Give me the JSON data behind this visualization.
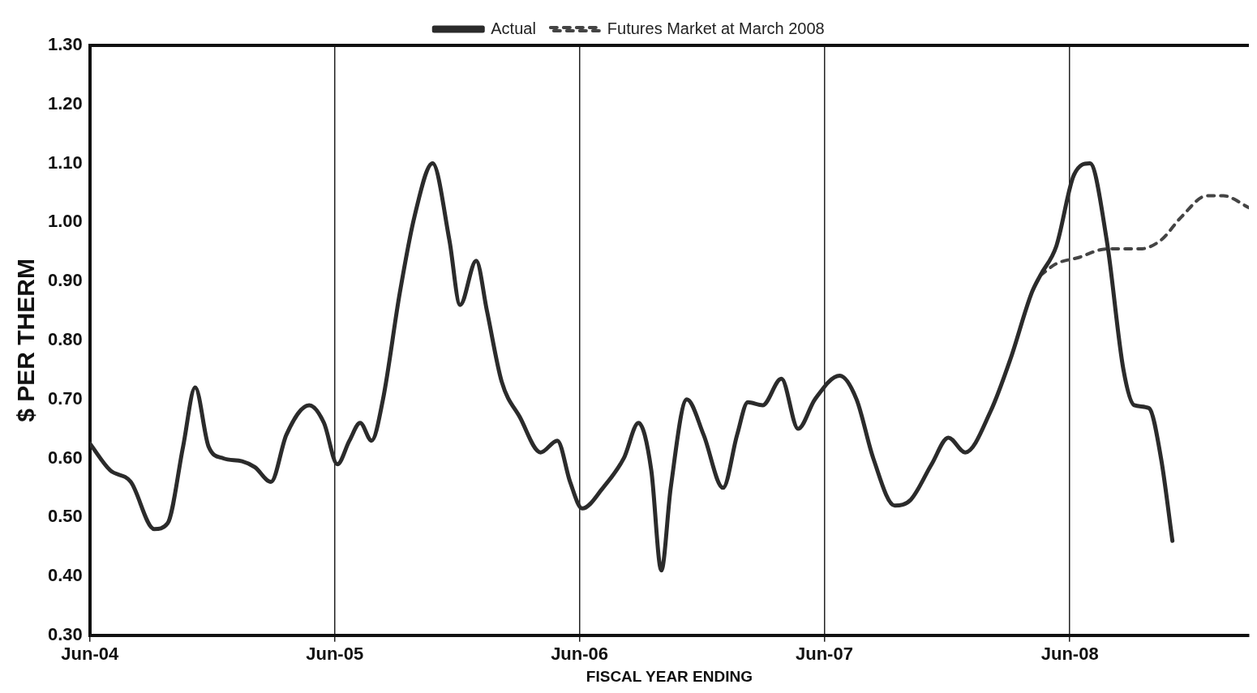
{
  "chart_data": {
    "type": "line",
    "xlabel": "FISCAL YEAR ENDING",
    "ylabel": "$ PER THERM",
    "legend": "top",
    "grid": "x",
    "marker": "none",
    "xlim": [
      "2004-06-01",
      "2009-02-23"
    ],
    "xticks": [
      {
        "value": "2004-06-01",
        "label": "Jun-04"
      },
      {
        "value": "2005-06-01",
        "label": "Jun-05"
      },
      {
        "value": "2006-06-01",
        "label": "Jun-06"
      },
      {
        "value": "2007-06-01",
        "label": "Jun-07"
      },
      {
        "value": "2008-06-01",
        "label": "Jun-08"
      }
    ],
    "ylim": [
      0.3,
      1.3
    ],
    "yticks": [
      {
        "value": 0.3,
        "label": "0.30"
      },
      {
        "value": 0.4,
        "label": "0.40"
      },
      {
        "value": 0.5,
        "label": "0.50"
      },
      {
        "value": 0.6,
        "label": "0.60"
      },
      {
        "value": 0.7,
        "label": "0.70"
      },
      {
        "value": 0.8,
        "label": "0.80"
      },
      {
        "value": 0.9,
        "label": "0.90"
      },
      {
        "value": 1.0,
        "label": "1.00"
      },
      {
        "value": 1.1,
        "label": "1.10"
      },
      {
        "value": 1.2,
        "label": "1.20"
      },
      {
        "value": 1.3,
        "label": "1.30"
      }
    ],
    "series": [
      {
        "name": "Actual",
        "color": "#2b2b2b",
        "line_style": "solid",
        "x": [
          "2004-06-01",
          "2004-07-01",
          "2004-08-01",
          "2004-09-05",
          "2004-09-25",
          "2004-10-18",
          "2004-11-05",
          "2004-11-25",
          "2004-12-17",
          "2005-01-14",
          "2005-02-02",
          "2005-02-26",
          "2005-03-21",
          "2005-04-24",
          "2005-05-16",
          "2005-06-05",
          "2005-06-23",
          "2005-07-09",
          "2005-07-26",
          "2005-08-12",
          "2005-09-06",
          "2005-09-28",
          "2005-10-25",
          "2005-11-19",
          "2005-12-05",
          "2005-12-29",
          "2006-01-14",
          "2006-02-05",
          "2006-03-04",
          "2006-04-04",
          "2006-04-29",
          "2006-05-18",
          "2006-06-05",
          "2006-07-06",
          "2006-08-06",
          "2006-08-28",
          "2006-09-16",
          "2006-10-01",
          "2006-10-15",
          "2006-11-08",
          "2006-12-03",
          "2007-01-01",
          "2007-01-22",
          "2007-02-07",
          "2007-03-01",
          "2007-03-29",
          "2007-04-23",
          "2007-05-18",
          "2007-06-24",
          "2007-07-19",
          "2007-08-13",
          "2007-09-14",
          "2007-10-08",
          "2007-11-08",
          "2007-12-03",
          "2007-12-28",
          "2008-02-04",
          "2008-03-05",
          "2008-04-05",
          "2008-04-18",
          "2008-05-12",
          "2008-06-07",
          "2008-07-01",
          "2008-07-26",
          "2008-08-20",
          "2008-09-05",
          "2008-09-27",
          "2008-10-15",
          "2008-11-01"
        ],
        "values": [
          0.625,
          0.58,
          0.56,
          0.48,
          0.49,
          0.62,
          0.72,
          0.62,
          0.6,
          0.595,
          0.585,
          0.56,
          0.64,
          0.69,
          0.66,
          0.59,
          0.63,
          0.66,
          0.63,
          0.7,
          0.88,
          1.01,
          1.1,
          0.97,
          0.86,
          0.935,
          0.85,
          0.73,
          0.67,
          0.61,
          0.63,
          0.56,
          0.515,
          0.55,
          0.6,
          0.66,
          0.58,
          0.41,
          0.55,
          0.7,
          0.64,
          0.55,
          0.64,
          0.695,
          0.69,
          0.735,
          0.65,
          0.7,
          0.74,
          0.7,
          0.6,
          0.52,
          0.53,
          0.59,
          0.635,
          0.61,
          0.68,
          0.77,
          0.88,
          0.91,
          0.96,
          1.08,
          1.1,
          0.97,
          0.75,
          0.69,
          0.685,
          0.6,
          0.46
        ]
      },
      {
        "name": "Futures Market at March 2008",
        "color": "#444444",
        "line_style": "dashed",
        "x": [
          "2008-04-18",
          "2008-05-12",
          "2008-06-13",
          "2008-07-26",
          "2008-09-14",
          "2008-10-15",
          "2008-11-15",
          "2008-12-22",
          "2009-01-16",
          "2009-02-23"
        ],
        "values": [
          0.91,
          0.93,
          0.94,
          0.955,
          0.955,
          0.97,
          1.01,
          1.045,
          1.045,
          1.025
        ]
      }
    ]
  }
}
